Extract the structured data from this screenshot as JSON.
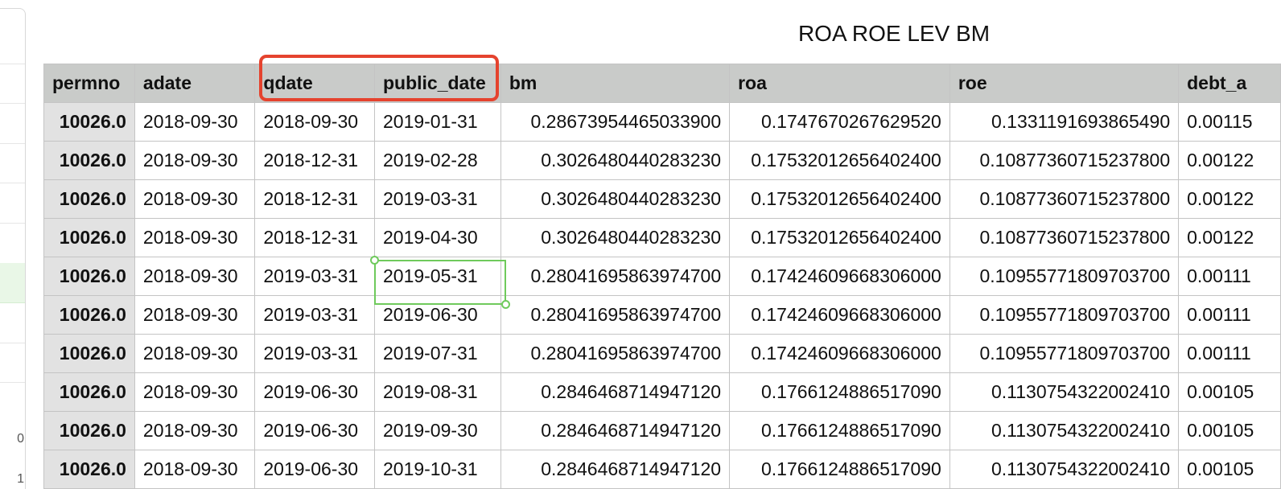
{
  "sheet": {
    "title": "ROA ROE LEV BM"
  },
  "left_panel": {
    "glyphs": [
      "0",
      "1"
    ]
  },
  "columns": [
    "permno",
    "adate",
    "qdate",
    "public_date",
    "bm",
    "roa",
    "roe",
    "debt_a"
  ],
  "rows": [
    [
      "10026.0",
      "2018-09-30",
      "2018-09-30",
      "2019-01-31",
      "0.28673954465033900",
      "0.1747670267629520",
      "0.1331191693865490",
      "0.00115"
    ],
    [
      "10026.0",
      "2018-09-30",
      "2018-12-31",
      "2019-02-28",
      "0.3026480440283230",
      "0.17532012656402400",
      "0.10877360715237800",
      "0.00122"
    ],
    [
      "10026.0",
      "2018-09-30",
      "2018-12-31",
      "2019-03-31",
      "0.3026480440283230",
      "0.17532012656402400",
      "0.10877360715237800",
      "0.00122"
    ],
    [
      "10026.0",
      "2018-09-30",
      "2018-12-31",
      "2019-04-30",
      "0.3026480440283230",
      "0.17532012656402400",
      "0.10877360715237800",
      "0.00122"
    ],
    [
      "10026.0",
      "2018-09-30",
      "2019-03-31",
      "2019-05-31",
      "0.28041695863974700",
      "0.17424609668306000",
      "0.10955771809703700",
      "0.00111"
    ],
    [
      "10026.0",
      "2018-09-30",
      "2019-03-31",
      "2019-06-30",
      "0.28041695863974700",
      "0.17424609668306000",
      "0.10955771809703700",
      "0.00111"
    ],
    [
      "10026.0",
      "2018-09-30",
      "2019-03-31",
      "2019-07-31",
      "0.28041695863974700",
      "0.17424609668306000",
      "0.10955771809703700",
      "0.00111"
    ],
    [
      "10026.0",
      "2018-09-30",
      "2019-06-30",
      "2019-08-31",
      "0.2846468714947120",
      "0.1766124886517090",
      "0.1130754322002410",
      "0.00105"
    ],
    [
      "10026.0",
      "2018-09-30",
      "2019-06-30",
      "2019-09-30",
      "0.2846468714947120",
      "0.1766124886517090",
      "0.1130754322002410",
      "0.00105"
    ],
    [
      "10026.0",
      "2018-09-30",
      "2019-06-30",
      "2019-10-31",
      "0.2846468714947120",
      "0.1766124886517090",
      "0.1130754322002410",
      "0.00105"
    ]
  ],
  "colors": {
    "highlight": "#e5432e",
    "selection": "#6fca5c",
    "header_bg": "#c9cbc9"
  }
}
